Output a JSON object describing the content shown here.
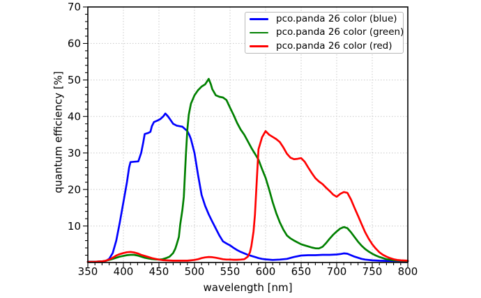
{
  "figure": {
    "background": "#ffffff"
  },
  "chart_data": {
    "type": "line",
    "xlabel": "wavelength [nm]",
    "ylabel": "quantum efficiency [%]",
    "xlim": [
      350,
      800
    ],
    "ylim": [
      0,
      70
    ],
    "x_ticks": [
      350,
      400,
      450,
      500,
      550,
      600,
      650,
      700,
      750,
      800
    ],
    "y_ticks": [
      10,
      20,
      30,
      40,
      50,
      60,
      70
    ],
    "x_minor_step": 10,
    "y_minor_step": 2,
    "grid": {
      "visible": true,
      "style": "dotted",
      "color": "#c8c8c8"
    },
    "legend": {
      "position": "upper right",
      "border_color": "#b8b8b8",
      "background": "#ffffff"
    },
    "series": [
      {
        "key": "blue",
        "name": "pco.panda 26 color (blue)",
        "color": "#0000ff",
        "points": [
          [
            350,
            0.2
          ],
          [
            360,
            0.2
          ],
          [
            370,
            0.3
          ],
          [
            375,
            0.4
          ],
          [
            380,
            1.0
          ],
          [
            385,
            2.6
          ],
          [
            390,
            6.0
          ],
          [
            395,
            11.0
          ],
          [
            400,
            16.5
          ],
          [
            405,
            22.0
          ],
          [
            408,
            26.0
          ],
          [
            410,
            27.5
          ],
          [
            415,
            27.6
          ],
          [
            421,
            27.7
          ],
          [
            425,
            30.0
          ],
          [
            428,
            33.0
          ],
          [
            430,
            35.2
          ],
          [
            435,
            35.5
          ],
          [
            438,
            35.8
          ],
          [
            440,
            37.3
          ],
          [
            443,
            38.5
          ],
          [
            448,
            38.9
          ],
          [
            452,
            39.3
          ],
          [
            456,
            40.0
          ],
          [
            459,
            40.8
          ],
          [
            462,
            40.2
          ],
          [
            465,
            39.4
          ],
          [
            470,
            38.0
          ],
          [
            475,
            37.5
          ],
          [
            480,
            37.3
          ],
          [
            483,
            37.2
          ],
          [
            487,
            36.5
          ],
          [
            490,
            36.0
          ],
          [
            493,
            34.8
          ],
          [
            495,
            33.8
          ],
          [
            500,
            30.0
          ],
          [
            505,
            24.0
          ],
          [
            510,
            18.5
          ],
          [
            515,
            15.5
          ],
          [
            520,
            13.2
          ],
          [
            525,
            11.2
          ],
          [
            530,
            9.3
          ],
          [
            535,
            7.4
          ],
          [
            540,
            5.8
          ],
          [
            545,
            5.2
          ],
          [
            550,
            4.7
          ],
          [
            555,
            4.0
          ],
          [
            560,
            3.4
          ],
          [
            565,
            2.9
          ],
          [
            570,
            2.5
          ],
          [
            575,
            2.1
          ],
          [
            580,
            1.8
          ],
          [
            585,
            1.5
          ],
          [
            590,
            1.2
          ],
          [
            595,
            1.0
          ],
          [
            600,
            0.85
          ],
          [
            610,
            0.7
          ],
          [
            620,
            0.8
          ],
          [
            630,
            1.0
          ],
          [
            640,
            1.5
          ],
          [
            650,
            1.9
          ],
          [
            660,
            2.0
          ],
          [
            670,
            2.0
          ],
          [
            680,
            2.1
          ],
          [
            690,
            2.1
          ],
          [
            700,
            2.2
          ],
          [
            705,
            2.3
          ],
          [
            710,
            2.5
          ],
          [
            715,
            2.4
          ],
          [
            720,
            2.0
          ],
          [
            725,
            1.6
          ],
          [
            730,
            1.3
          ],
          [
            735,
            1.0
          ],
          [
            740,
            0.8
          ],
          [
            750,
            0.6
          ],
          [
            760,
            0.5
          ],
          [
            770,
            0.45
          ],
          [
            780,
            0.4
          ],
          [
            790,
            0.4
          ],
          [
            800,
            0.35
          ]
        ]
      },
      {
        "key": "green",
        "name": "pco.panda 26 color (green)",
        "color": "#008000",
        "points": [
          [
            350,
            0.15
          ],
          [
            360,
            0.2
          ],
          [
            370,
            0.3
          ],
          [
            375,
            0.45
          ],
          [
            380,
            0.7
          ],
          [
            385,
            1.0
          ],
          [
            390,
            1.3
          ],
          [
            395,
            1.6
          ],
          [
            400,
            1.8
          ],
          [
            405,
            2.0
          ],
          [
            410,
            2.1
          ],
          [
            415,
            2.1
          ],
          [
            420,
            1.9
          ],
          [
            425,
            1.6
          ],
          [
            430,
            1.3
          ],
          [
            435,
            1.1
          ],
          [
            440,
            0.95
          ],
          [
            445,
            0.85
          ],
          [
            450,
            0.8
          ],
          [
            455,
            0.9
          ],
          [
            460,
            1.2
          ],
          [
            465,
            1.6
          ],
          [
            470,
            2.6
          ],
          [
            473,
            3.8
          ],
          [
            475,
            5.0
          ],
          [
            478,
            7.0
          ],
          [
            480,
            10.5
          ],
          [
            483,
            14.5
          ],
          [
            485,
            18.0
          ],
          [
            488,
            30.0
          ],
          [
            490,
            36.5
          ],
          [
            492,
            40.5
          ],
          [
            495,
            43.5
          ],
          [
            500,
            45.8
          ],
          [
            505,
            47.2
          ],
          [
            510,
            48.2
          ],
          [
            515,
            48.8
          ],
          [
            520,
            50.3
          ],
          [
            523,
            48.8
          ],
          [
            525,
            47.5
          ],
          [
            530,
            45.8
          ],
          [
            535,
            45.4
          ],
          [
            540,
            45.2
          ],
          [
            545,
            44.5
          ],
          [
            550,
            42.4
          ],
          [
            555,
            40.4
          ],
          [
            560,
            38.2
          ],
          [
            565,
            36.4
          ],
          [
            570,
            35.0
          ],
          [
            575,
            33.2
          ],
          [
            580,
            31.4
          ],
          [
            585,
            29.8
          ],
          [
            590,
            28.2
          ],
          [
            595,
            25.6
          ],
          [
            600,
            23.2
          ],
          [
            605,
            20.0
          ],
          [
            610,
            16.5
          ],
          [
            615,
            13.5
          ],
          [
            620,
            11.0
          ],
          [
            625,
            9.0
          ],
          [
            630,
            7.4
          ],
          [
            635,
            6.6
          ],
          [
            640,
            6.0
          ],
          [
            645,
            5.5
          ],
          [
            650,
            5.0
          ],
          [
            655,
            4.7
          ],
          [
            660,
            4.4
          ],
          [
            665,
            4.1
          ],
          [
            670,
            3.9
          ],
          [
            675,
            3.85
          ],
          [
            680,
            4.3
          ],
          [
            685,
            5.3
          ],
          [
            690,
            6.5
          ],
          [
            695,
            7.6
          ],
          [
            700,
            8.5
          ],
          [
            705,
            9.3
          ],
          [
            710,
            9.7
          ],
          [
            715,
            9.4
          ],
          [
            720,
            8.3
          ],
          [
            725,
            7.0
          ],
          [
            730,
            5.7
          ],
          [
            735,
            4.6
          ],
          [
            740,
            3.7
          ],
          [
            745,
            3.0
          ],
          [
            750,
            2.4
          ],
          [
            755,
            1.9
          ],
          [
            760,
            1.5
          ],
          [
            765,
            1.2
          ],
          [
            770,
            0.9
          ],
          [
            775,
            0.75
          ],
          [
            780,
            0.6
          ],
          [
            790,
            0.5
          ],
          [
            800,
            0.4
          ]
        ]
      },
      {
        "key": "red",
        "name": "pco.panda 26 color (red)",
        "color": "#ff0000",
        "points": [
          [
            350,
            0.15
          ],
          [
            360,
            0.2
          ],
          [
            370,
            0.3
          ],
          [
            375,
            0.5
          ],
          [
            380,
            0.8
          ],
          [
            385,
            1.3
          ],
          [
            390,
            1.9
          ],
          [
            395,
            2.3
          ],
          [
            400,
            2.6
          ],
          [
            405,
            2.8
          ],
          [
            410,
            2.9
          ],
          [
            415,
            2.75
          ],
          [
            420,
            2.5
          ],
          [
            425,
            2.1
          ],
          [
            430,
            1.8
          ],
          [
            435,
            1.5
          ],
          [
            440,
            1.2
          ],
          [
            445,
            1.0
          ],
          [
            450,
            0.8
          ],
          [
            455,
            0.65
          ],
          [
            460,
            0.6
          ],
          [
            465,
            0.55
          ],
          [
            470,
            0.5
          ],
          [
            480,
            0.5
          ],
          [
            490,
            0.5
          ],
          [
            495,
            0.6
          ],
          [
            500,
            0.7
          ],
          [
            505,
            0.9
          ],
          [
            510,
            1.2
          ],
          [
            515,
            1.4
          ],
          [
            520,
            1.5
          ],
          [
            525,
            1.45
          ],
          [
            530,
            1.3
          ],
          [
            535,
            1.1
          ],
          [
            540,
            0.9
          ],
          [
            545,
            0.8
          ],
          [
            550,
            0.8
          ],
          [
            555,
            0.75
          ],
          [
            560,
            0.75
          ],
          [
            565,
            0.8
          ],
          [
            570,
            0.9
          ],
          [
            575,
            1.6
          ],
          [
            578,
            2.8
          ],
          [
            580,
            4.5
          ],
          [
            583,
            8.5
          ],
          [
            585,
            13.0
          ],
          [
            588,
            24.0
          ],
          [
            590,
            31.0
          ],
          [
            595,
            34.3
          ],
          [
            600,
            36.0
          ],
          [
            605,
            35.0
          ],
          [
            610,
            34.4
          ],
          [
            615,
            33.8
          ],
          [
            620,
            33.0
          ],
          [
            625,
            31.5
          ],
          [
            630,
            29.8
          ],
          [
            635,
            28.7
          ],
          [
            640,
            28.3
          ],
          [
            645,
            28.4
          ],
          [
            650,
            28.6
          ],
          [
            655,
            27.6
          ],
          [
            660,
            26.0
          ],
          [
            665,
            24.5
          ],
          [
            670,
            23.1
          ],
          [
            675,
            22.2
          ],
          [
            680,
            21.5
          ],
          [
            685,
            20.5
          ],
          [
            690,
            19.6
          ],
          [
            695,
            18.6
          ],
          [
            700,
            18.0
          ],
          [
            705,
            18.8
          ],
          [
            710,
            19.3
          ],
          [
            715,
            19.1
          ],
          [
            720,
            17.3
          ],
          [
            725,
            15.0
          ],
          [
            730,
            12.8
          ],
          [
            735,
            10.5
          ],
          [
            740,
            8.3
          ],
          [
            745,
            6.5
          ],
          [
            750,
            5.0
          ],
          [
            755,
            3.8
          ],
          [
            760,
            2.8
          ],
          [
            765,
            2.1
          ],
          [
            770,
            1.6
          ],
          [
            775,
            1.2
          ],
          [
            780,
            0.9
          ],
          [
            785,
            0.7
          ],
          [
            790,
            0.6
          ],
          [
            800,
            0.5
          ]
        ]
      }
    ]
  }
}
